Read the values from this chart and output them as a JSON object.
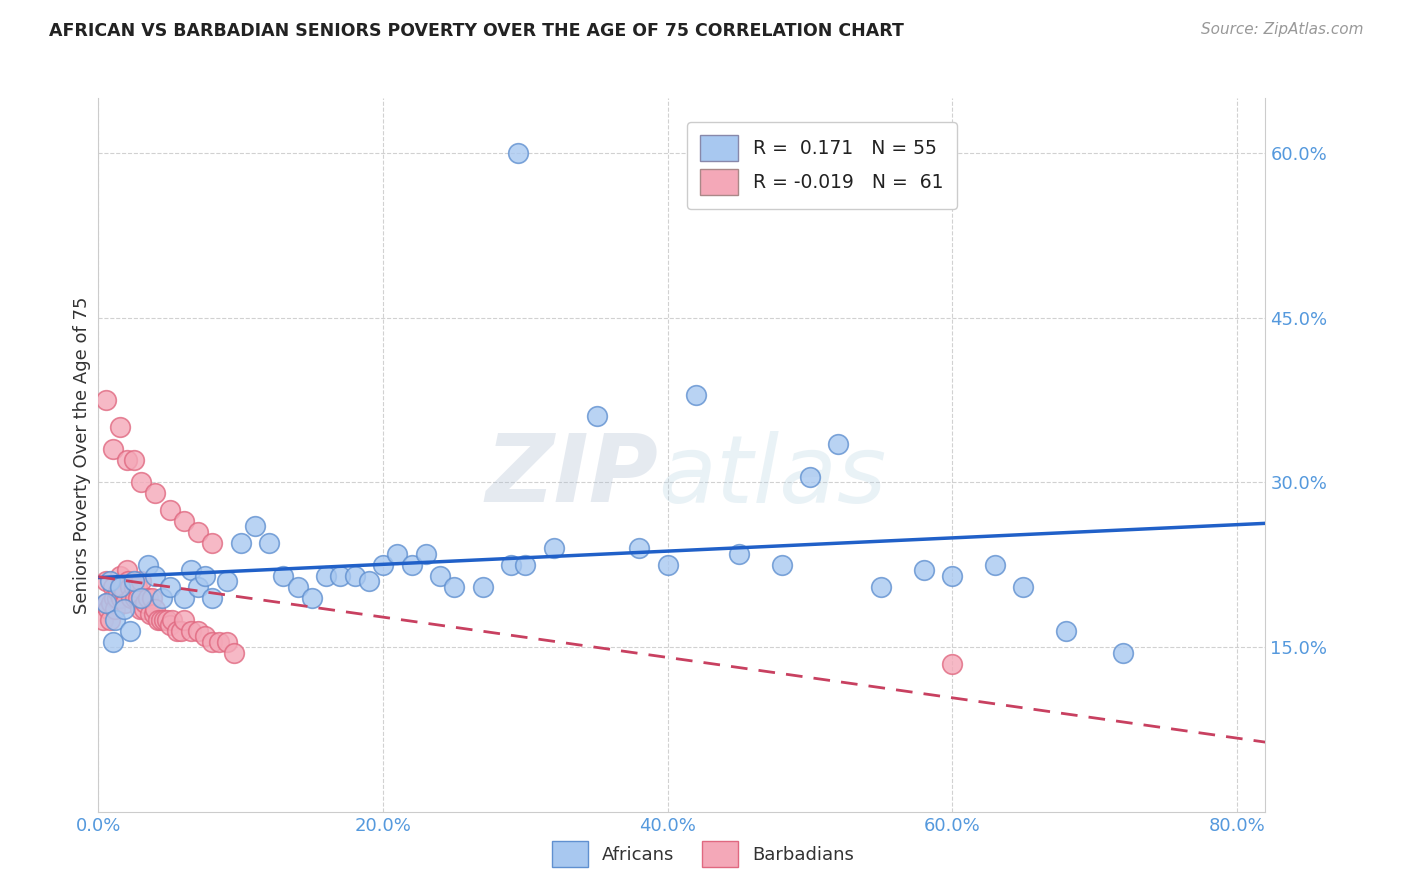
{
  "title": "AFRICAN VS BARBADIAN SENIORS POVERTY OVER THE AGE OF 75 CORRELATION CHART",
  "source": "Source: ZipAtlas.com",
  "ylabel": "Seniors Poverty Over the Age of 75",
  "xlim": [
    0.0,
    0.82
  ],
  "ylim": [
    0.0,
    0.65
  ],
  "xticks": [
    0.0,
    0.2,
    0.4,
    0.6,
    0.8
  ],
  "xtick_labels": [
    "0.0%",
    "20.0%",
    "40.0%",
    "60.0%",
    "80.0%"
  ],
  "yticks": [
    0.15,
    0.3,
    0.45,
    0.6
  ],
  "ytick_labels": [
    "15.0%",
    "30.0%",
    "45.0%",
    "60.0%"
  ],
  "african_color": "#A8C8F0",
  "barbadian_color": "#F4A8B8",
  "african_edge": "#6090D0",
  "barbadian_edge": "#E06880",
  "regression_african_color": "#2060C8",
  "regression_barbadian_color": "#C84060",
  "grid_color": "#CCCCCC",
  "background_color": "#FFFFFF",
  "title_color": "#222222",
  "axis_label_color": "#5599DD",
  "watermark_zip": "ZIP",
  "watermark_atlas": "atlas",
  "R_african": 0.171,
  "N_african": 55,
  "R_barbadian": -0.019,
  "N_barbadian": 61,
  "african_x": [
    0.005,
    0.008,
    0.01,
    0.012,
    0.015,
    0.018,
    0.022,
    0.025,
    0.03,
    0.035,
    0.04,
    0.045,
    0.05,
    0.06,
    0.065,
    0.07,
    0.075,
    0.08,
    0.09,
    0.1,
    0.11,
    0.12,
    0.13,
    0.14,
    0.15,
    0.16,
    0.17,
    0.18,
    0.19,
    0.2,
    0.21,
    0.22,
    0.23,
    0.24,
    0.25,
    0.27,
    0.29,
    0.3,
    0.32,
    0.35,
    0.38,
    0.4,
    0.42,
    0.45,
    0.48,
    0.5,
    0.52,
    0.55,
    0.58,
    0.6,
    0.63,
    0.65,
    0.68,
    0.72,
    0.295
  ],
  "african_y": [
    0.19,
    0.21,
    0.155,
    0.175,
    0.205,
    0.185,
    0.165,
    0.21,
    0.195,
    0.225,
    0.215,
    0.195,
    0.205,
    0.195,
    0.22,
    0.205,
    0.215,
    0.195,
    0.21,
    0.245,
    0.26,
    0.245,
    0.215,
    0.205,
    0.195,
    0.215,
    0.215,
    0.215,
    0.21,
    0.225,
    0.235,
    0.225,
    0.235,
    0.215,
    0.205,
    0.205,
    0.225,
    0.225,
    0.24,
    0.36,
    0.24,
    0.225,
    0.38,
    0.235,
    0.225,
    0.305,
    0.335,
    0.205,
    0.22,
    0.215,
    0.225,
    0.205,
    0.165,
    0.145,
    0.6
  ],
  "barbadian_x": [
    0.003,
    0.005,
    0.006,
    0.007,
    0.008,
    0.009,
    0.01,
    0.011,
    0.012,
    0.013,
    0.014,
    0.015,
    0.016,
    0.017,
    0.018,
    0.019,
    0.02,
    0.021,
    0.022,
    0.023,
    0.025,
    0.026,
    0.027,
    0.028,
    0.029,
    0.03,
    0.032,
    0.033,
    0.035,
    0.036,
    0.038,
    0.039,
    0.04,
    0.042,
    0.044,
    0.046,
    0.048,
    0.05,
    0.052,
    0.055,
    0.058,
    0.06,
    0.065,
    0.07,
    0.075,
    0.08,
    0.085,
    0.09,
    0.095,
    0.01,
    0.02,
    0.03,
    0.04,
    0.05,
    0.06,
    0.07,
    0.08,
    0.005,
    0.015,
    0.025,
    0.6
  ],
  "barbadian_y": [
    0.175,
    0.21,
    0.19,
    0.185,
    0.175,
    0.19,
    0.205,
    0.195,
    0.185,
    0.195,
    0.2,
    0.215,
    0.195,
    0.205,
    0.2,
    0.19,
    0.22,
    0.21,
    0.205,
    0.195,
    0.205,
    0.195,
    0.205,
    0.195,
    0.185,
    0.21,
    0.185,
    0.19,
    0.195,
    0.18,
    0.195,
    0.18,
    0.185,
    0.175,
    0.175,
    0.175,
    0.175,
    0.17,
    0.175,
    0.165,
    0.165,
    0.175,
    0.165,
    0.165,
    0.16,
    0.155,
    0.155,
    0.155,
    0.145,
    0.33,
    0.32,
    0.3,
    0.29,
    0.275,
    0.265,
    0.255,
    0.245,
    0.375,
    0.35,
    0.32,
    0.135
  ]
}
